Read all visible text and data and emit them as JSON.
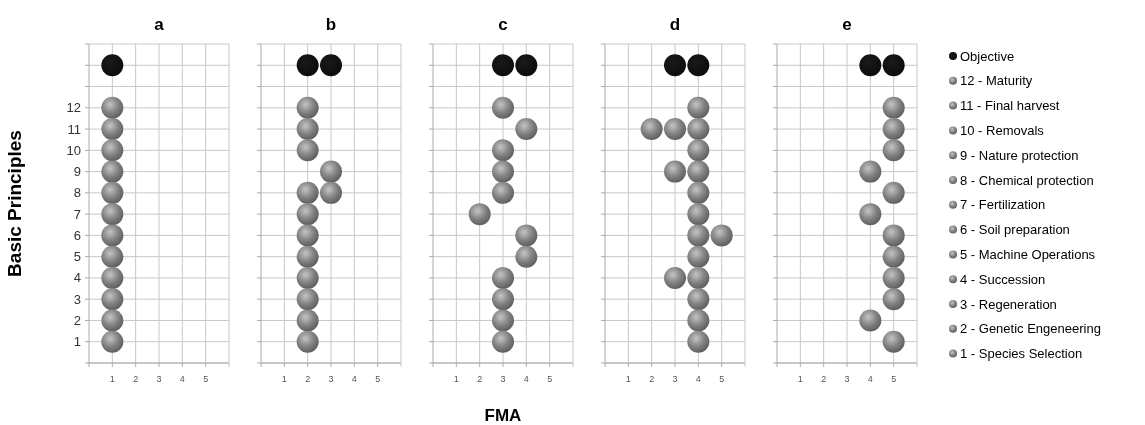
{
  "chart_data": [
    {
      "type": "scatter",
      "title": "a",
      "ylabel": "Basic Principles",
      "xlim": [
        0,
        6
      ],
      "xticks": [
        1,
        2,
        3,
        4,
        5
      ],
      "ylim": [
        0,
        15
      ],
      "yticks": [
        {
          "value": 0,
          "label": null
        },
        1,
        2,
        3,
        4,
        5,
        6,
        7,
        8,
        9,
        10,
        11,
        12,
        {
          "value": 13,
          "label": null
        },
        {
          "value": 14,
          "label": null
        },
        {
          "value": 15,
          "label": null
        }
      ],
      "grid": true,
      "marker": "circle",
      "legend": false,
      "series": [
        {
          "color": "#111111",
          "x": [
            1
          ],
          "values": [
            14
          ]
        },
        {
          "color": "#808080",
          "x": [
            1
          ],
          "values": [
            12
          ]
        },
        {
          "color": "#808080",
          "x": [
            1
          ],
          "values": [
            11
          ]
        },
        {
          "color": "#808080",
          "x": [
            1
          ],
          "values": [
            10
          ]
        },
        {
          "color": "#808080",
          "x": [
            1
          ],
          "values": [
            9
          ]
        },
        {
          "color": "#808080",
          "x": [
            1
          ],
          "values": [
            8
          ]
        },
        {
          "color": "#808080",
          "x": [
            1
          ],
          "values": [
            7
          ]
        },
        {
          "color": "#808080",
          "x": [
            1
          ],
          "values": [
            6
          ]
        },
        {
          "color": "#808080",
          "x": [
            1
          ],
          "values": [
            5
          ]
        },
        {
          "color": "#808080",
          "x": [
            1
          ],
          "values": [
            4
          ]
        },
        {
          "color": "#808080",
          "x": [
            1
          ],
          "values": [
            3
          ]
        },
        {
          "color": "#808080",
          "x": [
            1
          ],
          "values": [
            2
          ]
        },
        {
          "color": "#808080",
          "x": [
            1
          ],
          "values": [
            1
          ]
        }
      ]
    },
    {
      "type": "scatter",
      "title": "b",
      "tick_labels": "x",
      "xlim": [
        0,
        6
      ],
      "xticks": [
        1,
        2,
        3,
        4,
        5
      ],
      "ylim": [
        0,
        15
      ],
      "yticks": [
        0,
        1,
        2,
        3,
        4,
        5,
        6,
        7,
        8,
        9,
        10,
        11,
        12,
        13,
        14,
        15
      ],
      "grid": true,
      "marker": "circle",
      "legend": false,
      "series": [
        {
          "color": "#111111",
          "x": [
            2,
            3
          ],
          "values": [
            14,
            14
          ]
        },
        {
          "color": "#808080",
          "x": [
            2
          ],
          "values": [
            12
          ]
        },
        {
          "color": "#808080",
          "x": [
            2
          ],
          "values": [
            11
          ]
        },
        {
          "color": "#808080",
          "x": [
            2
          ],
          "values": [
            10
          ]
        },
        {
          "color": "#808080",
          "x": [
            3
          ],
          "values": [
            9
          ]
        },
        {
          "color": "#808080",
          "x": [
            2,
            3
          ],
          "values": [
            8,
            8
          ]
        },
        {
          "color": "#808080",
          "x": [
            2
          ],
          "values": [
            7
          ]
        },
        {
          "color": "#808080",
          "x": [
            2
          ],
          "values": [
            6
          ]
        },
        {
          "color": "#808080",
          "x": [
            2
          ],
          "values": [
            5
          ]
        },
        {
          "color": "#808080",
          "x": [
            2
          ],
          "values": [
            4
          ]
        },
        {
          "color": "#808080",
          "x": [
            2
          ],
          "values": [
            3
          ]
        },
        {
          "color": "#808080",
          "x": [
            2
          ],
          "values": [
            2
          ]
        },
        {
          "color": "#808080",
          "x": [
            2
          ],
          "values": [
            1
          ]
        }
      ]
    },
    {
      "type": "scatter",
      "title": "c",
      "xlabel": "FMA",
      "tick_labels": "x",
      "xlim": [
        0,
        6
      ],
      "xticks": [
        1,
        2,
        3,
        4,
        5
      ],
      "ylim": [
        0,
        15
      ],
      "yticks": [
        0,
        1,
        2,
        3,
        4,
        5,
        6,
        7,
        8,
        9,
        10,
        11,
        12,
        13,
        14,
        15
      ],
      "grid": true,
      "marker": "circle",
      "legend": false,
      "series": [
        {
          "color": "#111111",
          "x": [
            3,
            4
          ],
          "values": [
            14,
            14
          ]
        },
        {
          "color": "#808080",
          "x": [
            3
          ],
          "values": [
            12
          ]
        },
        {
          "color": "#808080",
          "x": [
            4
          ],
          "values": [
            11
          ]
        },
        {
          "color": "#808080",
          "x": [
            3
          ],
          "values": [
            10
          ]
        },
        {
          "color": "#808080",
          "x": [
            3
          ],
          "values": [
            9
          ]
        },
        {
          "color": "#808080",
          "x": [
            3
          ],
          "values": [
            8
          ]
        },
        {
          "color": "#808080",
          "x": [
            2
          ],
          "values": [
            7
          ]
        },
        {
          "color": "#808080",
          "x": [
            4
          ],
          "values": [
            6
          ]
        },
        {
          "color": "#808080",
          "x": [
            4
          ],
          "values": [
            5
          ]
        },
        {
          "color": "#808080",
          "x": [
            3
          ],
          "values": [
            4
          ]
        },
        {
          "color": "#808080",
          "x": [
            3
          ],
          "values": [
            3
          ]
        },
        {
          "color": "#808080",
          "x": [
            3
          ],
          "values": [
            2
          ]
        },
        {
          "color": "#808080",
          "x": [
            3
          ],
          "values": [
            1
          ]
        }
      ]
    },
    {
      "type": "scatter",
      "title": "d",
      "tick_labels": "x",
      "xlim": [
        0,
        6
      ],
      "xticks": [
        1,
        2,
        3,
        4,
        5
      ],
      "ylim": [
        0,
        15
      ],
      "yticks": [
        0,
        1,
        2,
        3,
        4,
        5,
        6,
        7,
        8,
        9,
        10,
        11,
        12,
        13,
        14,
        15
      ],
      "grid": true,
      "marker": "circle",
      "legend": false,
      "series": [
        {
          "color": "#111111",
          "x": [
            3,
            4
          ],
          "values": [
            14,
            14
          ]
        },
        {
          "color": "#808080",
          "x": [
            4
          ],
          "values": [
            12
          ]
        },
        {
          "color": "#808080",
          "x": [
            2,
            3,
            4
          ],
          "values": [
            11,
            11,
            11
          ]
        },
        {
          "color": "#808080",
          "x": [
            4
          ],
          "values": [
            10
          ]
        },
        {
          "color": "#808080",
          "x": [
            3,
            4
          ],
          "values": [
            9,
            9
          ]
        },
        {
          "color": "#808080",
          "x": [
            4
          ],
          "values": [
            8
          ]
        },
        {
          "color": "#808080",
          "x": [
            4
          ],
          "values": [
            7
          ]
        },
        {
          "color": "#808080",
          "x": [
            4,
            5
          ],
          "values": [
            6,
            6
          ]
        },
        {
          "color": "#808080",
          "x": [
            4
          ],
          "values": [
            5
          ]
        },
        {
          "color": "#808080",
          "x": [
            3,
            4
          ],
          "values": [
            4,
            4
          ]
        },
        {
          "color": "#808080",
          "x": [
            4
          ],
          "values": [
            3
          ]
        },
        {
          "color": "#808080",
          "x": [
            4
          ],
          "values": [
            2
          ]
        },
        {
          "color": "#808080",
          "x": [
            4
          ],
          "values": [
            1
          ]
        }
      ]
    },
    {
      "type": "scatter",
      "title": "e",
      "tick_labels": "x",
      "xlim": [
        0,
        6
      ],
      "xticks": [
        1,
        2,
        3,
        4,
        5
      ],
      "ylim": [
        0,
        15
      ],
      "yticks": [
        0,
        1,
        2,
        3,
        4,
        5,
        6,
        7,
        8,
        9,
        10,
        11,
        12,
        13,
        14,
        15
      ],
      "grid": true,
      "marker": "circle",
      "legend": "right",
      "series": [
        {
          "name": "Objective",
          "color": "#111111",
          "x": [
            4,
            5
          ],
          "values": [
            14,
            14
          ]
        },
        {
          "name": "12 - Maturity",
          "color": "#808080",
          "x": [
            5
          ],
          "values": [
            12
          ]
        },
        {
          "name": "11 - Final harvest",
          "color": "#808080",
          "x": [
            5
          ],
          "values": [
            11
          ]
        },
        {
          "name": "10 - Removals",
          "color": "#808080",
          "x": [
            5
          ],
          "values": [
            10
          ]
        },
        {
          "name": "9 - Nature protection",
          "color": "#808080",
          "x": [
            4
          ],
          "values": [
            9
          ]
        },
        {
          "name": "8 - Chemical protection",
          "color": "#808080",
          "x": [
            5
          ],
          "values": [
            8
          ]
        },
        {
          "name": "7 - Fertilization",
          "color": "#808080",
          "x": [
            4
          ],
          "values": [
            7
          ]
        },
        {
          "name": "6 - Soil preparation",
          "color": "#808080",
          "x": [
            5
          ],
          "values": [
            6
          ]
        },
        {
          "name": "5 - Machine Operations",
          "color": "#808080",
          "x": [
            5
          ],
          "values": [
            5
          ]
        },
        {
          "name": "4 - Succession",
          "color": "#808080",
          "x": [
            5
          ],
          "values": [
            4
          ]
        },
        {
          "name": "3 - Regeneration",
          "color": "#808080",
          "x": [
            5
          ],
          "values": [
            3
          ]
        },
        {
          "name": "2 - Genetic Engeneering",
          "color": "#808080",
          "x": [
            4
          ],
          "values": [
            2
          ]
        },
        {
          "name": "1 - Species Selection",
          "color": "#808080",
          "x": [
            5
          ],
          "values": [
            1
          ]
        }
      ]
    }
  ]
}
